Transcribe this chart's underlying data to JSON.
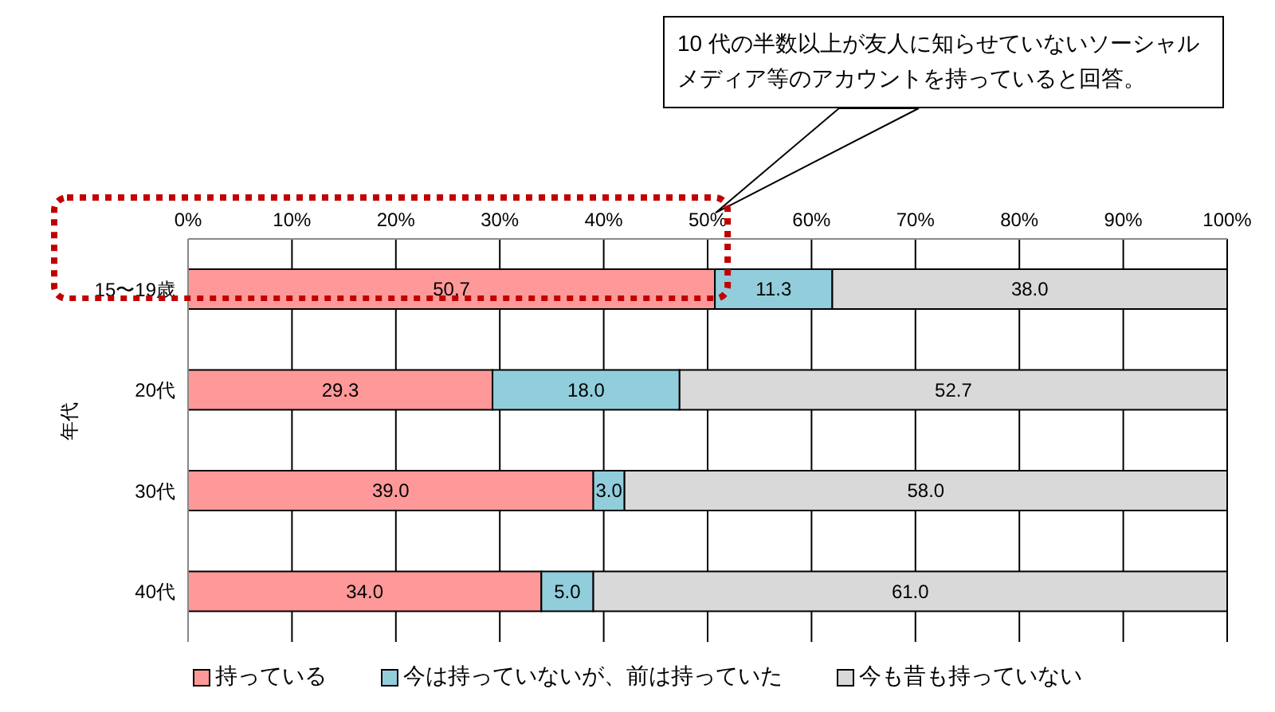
{
  "chart_data": {
    "type": "bar",
    "orientation": "horizontal",
    "stacked": true,
    "ylabel": "年代",
    "categories": [
      "15〜19歳",
      "20代",
      "30代",
      "40代"
    ],
    "series": [
      {
        "name": "持っている",
        "color": "#ff9999",
        "values": [
          50.7,
          29.3,
          39.0,
          34.0
        ],
        "value_labels": [
          "50.7",
          "29.3",
          "39.0",
          "34.0"
        ]
      },
      {
        "name": "今は持っていないが、前は持っていた",
        "color": "#92cddc",
        "values": [
          11.3,
          18.0,
          3.0,
          5.0
        ],
        "value_labels": [
          "11.3",
          "18.0",
          "3.0",
          "5.0"
        ]
      },
      {
        "name": "今も昔も持っていない",
        "color": "#d9d9d9",
        "values": [
          38.0,
          52.7,
          58.0,
          61.0
        ],
        "value_labels": [
          "38.0",
          "52.7",
          "58.0",
          "61.0"
        ]
      }
    ],
    "xlim": [
      0,
      100
    ],
    "xticks": [
      {
        "value": 0,
        "label": "0%"
      },
      {
        "value": 10,
        "label": "10%"
      },
      {
        "value": 20,
        "label": "20%"
      },
      {
        "value": 30,
        "label": "30%"
      },
      {
        "value": 40,
        "label": "40%"
      },
      {
        "value": 50,
        "label": "50%"
      },
      {
        "value": 60,
        "label": "60%"
      },
      {
        "value": 70,
        "label": "70%"
      },
      {
        "value": 80,
        "label": "80%"
      },
      {
        "value": 90,
        "label": "90%"
      },
      {
        "value": 100,
        "label": "100%"
      }
    ],
    "grid": "x",
    "legend": "bottom",
    "annotations": [
      "10 代の半数以上が友人に知らせていないソーシャルメディア等のアカウントを持っていると回答。"
    ]
  }
}
